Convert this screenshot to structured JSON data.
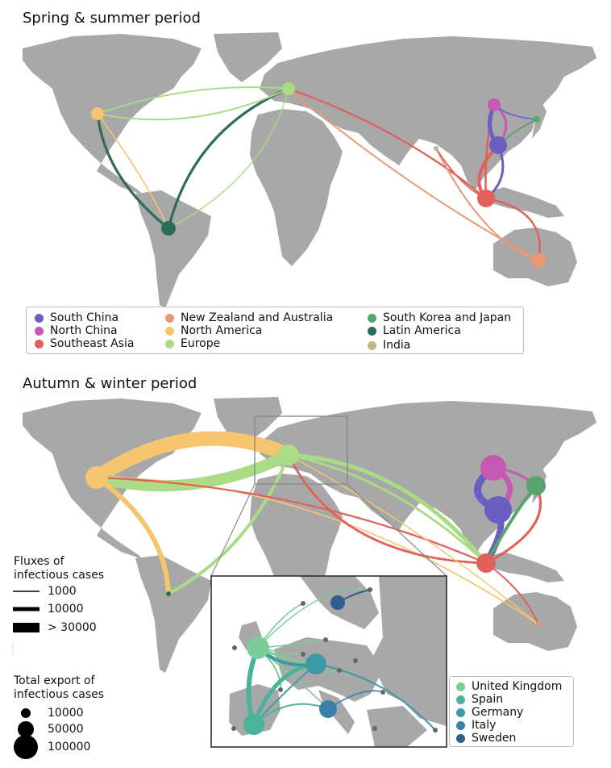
{
  "titles": {
    "spring": "Spring & summer period",
    "autumn": "Autumn & winter period"
  },
  "region_legend": [
    {
      "label": "South China",
      "color": "#6a5fc1"
    },
    {
      "label": "North China",
      "color": "#c65ab3"
    },
    {
      "label": "Southeast Asia",
      "color": "#e0605a"
    },
    {
      "label": "New Zealand and Australia",
      "color": "#ea9a72"
    },
    {
      "label": "North America",
      "color": "#f5c66e"
    },
    {
      "label": "Europe",
      "color": "#a9dc85"
    },
    {
      "label": "South Korea and Japan",
      "color": "#55a56c"
    },
    {
      "label": "Latin America",
      "color": "#2d6b5a"
    },
    {
      "label": "India",
      "color": "#c2b886"
    }
  ],
  "country_legend": [
    {
      "label": "United Kingdom",
      "color": "#79cd96"
    },
    {
      "label": "Spain",
      "color": "#4bb39a"
    },
    {
      "label": "Germany",
      "color": "#3f9aa6"
    },
    {
      "label": "Italy",
      "color": "#3981a8"
    },
    {
      "label": "Sweden",
      "color": "#2e5f93"
    }
  ],
  "flux_legend": {
    "title_line1": "Fluxes of",
    "title_line2": "infectious cases",
    "items": [
      "1000",
      "10000",
      "> 30000"
    ]
  },
  "export_legend": {
    "title_line1": "Total export of",
    "title_line2": "infectious cases",
    "items": [
      "10000",
      "50000",
      "100000"
    ]
  },
  "colors": {
    "land": "#a8a8a8",
    "inset_border": "#222222",
    "zoom_box": "#8a8a8a"
  }
}
